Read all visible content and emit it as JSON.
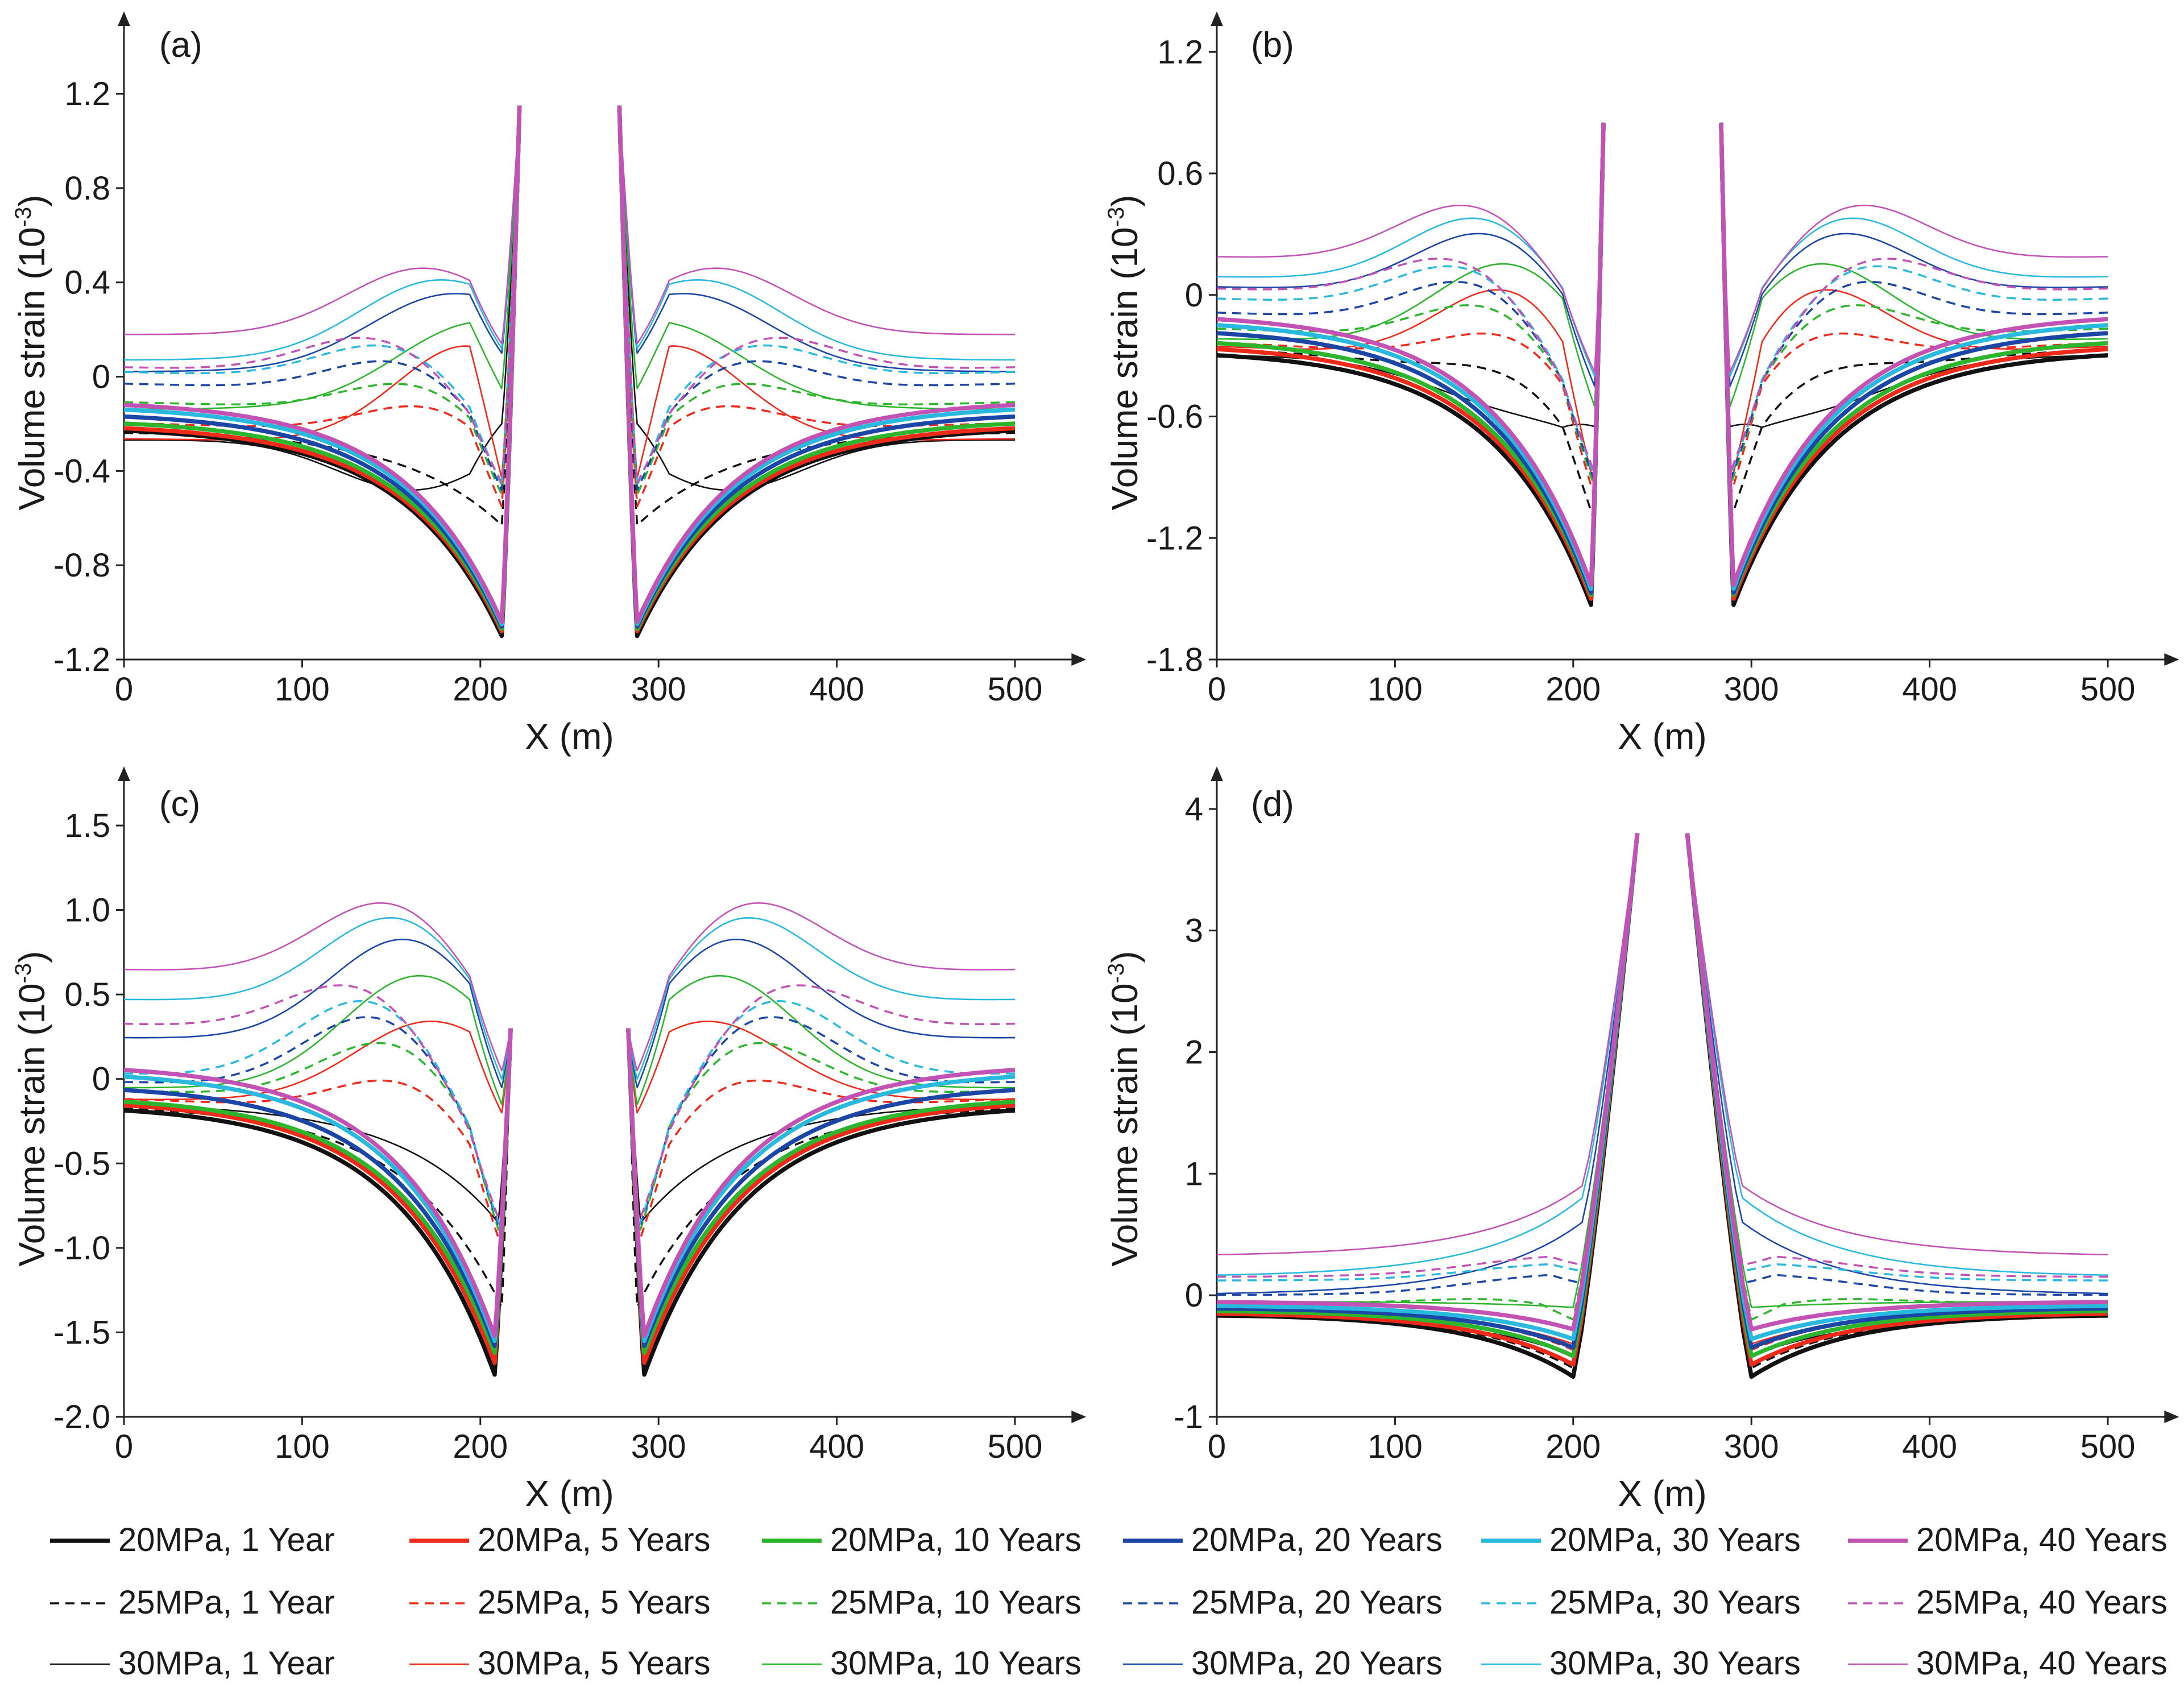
{
  "figure": {
    "x_label": "X (m)",
    "y_label_main": "Volume strain (10",
    "y_label_exp": "-3",
    "y_label_close": ")"
  },
  "colors": {
    "1": "#111111",
    "5": "#ee2a1a",
    "10": "#2db52d",
    "20": "#1b46a6",
    "30": "#29b9df",
    "40": "#c253b5"
  },
  "legend": [
    {
      "label": "20MPa, 1 Year",
      "pressure": 20,
      "years": 1
    },
    {
      "label": "20MPa, 5 Years",
      "pressure": 20,
      "years": 5
    },
    {
      "label": "20MPa, 10 Years",
      "pressure": 20,
      "years": 10
    },
    {
      "label": "20MPa, 20 Years",
      "pressure": 20,
      "years": 20
    },
    {
      "label": "20MPa, 30 Years",
      "pressure": 20,
      "years": 30
    },
    {
      "label": "20MPa, 40 Years",
      "pressure": 20,
      "years": 40
    },
    {
      "label": "25MPa, 1 Year",
      "pressure": 25,
      "years": 1
    },
    {
      "label": "25MPa, 5 Years",
      "pressure": 25,
      "years": 5
    },
    {
      "label": "25MPa, 10 Years",
      "pressure": 25,
      "years": 10
    },
    {
      "label": "25MPa, 20 Years",
      "pressure": 25,
      "years": 20
    },
    {
      "label": "25MPa, 30 Years",
      "pressure": 25,
      "years": 30
    },
    {
      "label": "25MPa, 40 Years",
      "pressure": 25,
      "years": 40
    },
    {
      "label": "30MPa, 1 Year",
      "pressure": 30,
      "years": 1
    },
    {
      "label": "30MPa, 5 Years",
      "pressure": 30,
      "years": 5
    },
    {
      "label": "30MPa, 10 Years",
      "pressure": 30,
      "years": 10
    },
    {
      "label": "30MPa, 20 Years",
      "pressure": 30,
      "years": 20
    },
    {
      "label": "30MPa, 30 Years",
      "pressure": 30,
      "years": 30
    },
    {
      "label": "30MPa, 40 Years",
      "pressure": 30,
      "years": 40
    }
  ],
  "chart_data": [
    {
      "type": "line",
      "panel": "(a)",
      "xlabel": "X (m)",
      "ylabel": "Volume strain (10^-3)",
      "xlim": [
        0,
        540
      ],
      "ylim": [
        -1.2,
        1.55
      ],
      "xticks": [
        0,
        100,
        200,
        300,
        400,
        500
      ],
      "yticks": [
        -1.2,
        -0.8,
        -0.4,
        0,
        0.4,
        0.8,
        1.2
      ],
      "ytick_labels": [
        "-1.2",
        "-0.8",
        "-0.4",
        "0",
        "0.4",
        "0.8",
        "1.2"
      ],
      "opening": [
        222,
        278
      ],
      "edge_value": 1.15,
      "series": [
        {
          "name": "20MPa, 1 Year",
          "far": -0.21,
          "xmin": 212,
          "ymin": -1.1
        },
        {
          "name": "20MPa, 5 Years",
          "far": -0.2,
          "xmin": 212,
          "ymin": -1.08
        },
        {
          "name": "20MPa, 10 Years",
          "far": -0.18,
          "xmin": 212,
          "ymin": -1.07
        },
        {
          "name": "20MPa, 20 Years",
          "far": -0.15,
          "xmin": 212,
          "ymin": -1.06
        },
        {
          "name": "20MPa, 30 Years",
          "far": -0.12,
          "xmin": 212,
          "ymin": -1.05
        },
        {
          "name": "20MPa, 40 Years",
          "far": -0.1,
          "xmin": 212,
          "ymin": -1.04
        },
        {
          "name": "25MPa, 1 Year",
          "far": -0.23,
          "xmin": 212,
          "ymin": -0.63,
          "peak_x": 190,
          "peak": -0.5
        },
        {
          "name": "25MPa, 5 Years",
          "far": -0.19,
          "xmin": 212,
          "ymin": -0.55,
          "peak_x": 185,
          "peak": -0.17
        },
        {
          "name": "25MPa, 10 Years",
          "far": -0.1,
          "xmin": 212,
          "ymin": -0.5,
          "peak_x": 175,
          "peak": -0.07
        },
        {
          "name": "25MPa, 20 Years",
          "far": -0.02,
          "xmin": 212,
          "ymin": -0.48,
          "peak_x": 165,
          "peak": 0.03
        },
        {
          "name": "25MPa, 30 Years",
          "far": 0.03,
          "xmin": 212,
          "ymin": -0.46,
          "peak_x": 160,
          "peak": 0.1
        },
        {
          "name": "25MPa, 40 Years",
          "far": 0.05,
          "xmin": 212,
          "ymin": -0.45,
          "peak_x": 150,
          "peak": 0.14
        },
        {
          "name": "30MPa, 1 Year",
          "far": -0.27,
          "xmin": 212,
          "ymin": -0.2,
          "peak_x": 165,
          "peak": -0.48
        },
        {
          "name": "30MPa, 5 Years",
          "far": -0.26,
          "xmin": 212,
          "ymin": -0.43,
          "peak_x": 200,
          "peak": 0.12
        },
        {
          "name": "30MPa, 10 Years",
          "far": -0.14,
          "xmin": 212,
          "ymin": -0.05,
          "peak_x": 195,
          "peak": 0.23
        },
        {
          "name": "30MPa, 20 Years",
          "far": 0.02,
          "xmin": 212,
          "ymin": 0.1,
          "peak_x": 180,
          "peak": 0.35
        },
        {
          "name": "30MPa, 30 Years",
          "far": 0.07,
          "xmin": 212,
          "ymin": 0.12,
          "peak_x": 175,
          "peak": 0.41
        },
        {
          "name": "30MPa, 40 Years",
          "far": 0.18,
          "xmin": 212,
          "ymin": 0.14,
          "peak_x": 170,
          "peak": 0.46
        }
      ]
    },
    {
      "type": "line",
      "panel": "(b)",
      "xlabel": "X (m)",
      "ylabel": "Volume strain (10^-3)",
      "xlim": [
        0,
        540
      ],
      "ylim": [
        -1.8,
        1.4
      ],
      "xticks": [
        0,
        100,
        200,
        300,
        400,
        500
      ],
      "yticks": [
        -1.8,
        -1.2,
        -0.6,
        0,
        0.6,
        1.2
      ],
      "ytick_labels": [
        "-1.8",
        "-1.2",
        "-0.6",
        "0",
        "0.6",
        "1.2"
      ],
      "opening": [
        217,
        283
      ],
      "edge_value": 0.85,
      "series": [
        {
          "name": "20MPa, 1 Year",
          "far": -0.27,
          "xmin": 210,
          "ymin": -1.53
        },
        {
          "name": "20MPa, 5 Years",
          "far": -0.24,
          "xmin": 210,
          "ymin": -1.5
        },
        {
          "name": "20MPa, 10 Years",
          "far": -0.21,
          "xmin": 210,
          "ymin": -1.48
        },
        {
          "name": "20MPa, 20 Years",
          "far": -0.16,
          "xmin": 210,
          "ymin": -1.47
        },
        {
          "name": "20MPa, 30 Years",
          "far": -0.12,
          "xmin": 210,
          "ymin": -1.45
        },
        {
          "name": "20MPa, 40 Years",
          "far": -0.09,
          "xmin": 210,
          "ymin": -1.43
        },
        {
          "name": "25MPa, 1 Year",
          "far": -0.25,
          "xmin": 212,
          "ymin": -1.12,
          "peak_x": 185,
          "peak": -0.55
        },
        {
          "name": "25MPa, 5 Years",
          "far": -0.22,
          "xmin": 212,
          "ymin": -1.0,
          "peak_x": 180,
          "peak": -0.3
        },
        {
          "name": "25MPa, 10 Years",
          "far": -0.15,
          "xmin": 212,
          "ymin": -0.95,
          "peak_x": 165,
          "peak": -0.12
        },
        {
          "name": "25MPa, 20 Years",
          "far": -0.07,
          "xmin": 212,
          "ymin": -0.92,
          "peak_x": 155,
          "peak": 0.01
        },
        {
          "name": "25MPa, 30 Years",
          "far": 0.0,
          "xmin": 212,
          "ymin": -0.9,
          "peak_x": 150,
          "peak": 0.09
        },
        {
          "name": "25MPa, 40 Years",
          "far": 0.05,
          "xmin": 212,
          "ymin": -0.88,
          "peak_x": 145,
          "peak": 0.13
        },
        {
          "name": "30MPa, 1 Year",
          "far": -0.29,
          "xmin": 212,
          "ymin": -0.65,
          "peak_x": 160,
          "peak": -0.57
        },
        {
          "name": "30MPa, 5 Years",
          "far": -0.24,
          "xmin": 212,
          "ymin": -0.95,
          "peak_x": 175,
          "peak": -0.03
        },
        {
          "name": "30MPa, 10 Years",
          "far": -0.21,
          "xmin": 212,
          "ymin": -0.55,
          "peak_x": 170,
          "peak": 0.14
        },
        {
          "name": "30MPa, 20 Years",
          "far": 0.05,
          "xmin": 212,
          "ymin": -0.45,
          "peak_x": 160,
          "peak": 0.28
        },
        {
          "name": "30MPa, 30 Years",
          "far": 0.1,
          "xmin": 212,
          "ymin": -0.4,
          "peak_x": 155,
          "peak": 0.36
        },
        {
          "name": "30MPa, 40 Years",
          "far": 0.2,
          "xmin": 212,
          "ymin": -0.38,
          "peak_x": 150,
          "peak": 0.42
        }
      ]
    },
    {
      "type": "line",
      "panel": "(c)",
      "xlabel": "X (m)",
      "ylabel": "Volume strain (10^-3)",
      "xlim": [
        0,
        540
      ],
      "ylim": [
        -2.0,
        1.85
      ],
      "xticks": [
        0,
        100,
        200,
        300,
        400,
        500
      ],
      "yticks": [
        -2.0,
        -1.5,
        -1.0,
        -0.5,
        0,
        0.5,
        1.0,
        1.5
      ],
      "ytick_labels": [
        "-2.0",
        "-1.5",
        "-1.0",
        "-0.5",
        "0",
        "0.5",
        "1.0",
        "1.5"
      ],
      "opening": [
        217,
        283
      ],
      "edge_value": 0.3,
      "series": [
        {
          "name": "20MPa, 1 Year",
          "far": -0.15,
          "xmin": 208,
          "ymin": -1.75
        },
        {
          "name": "20MPa, 5 Years",
          "far": -0.12,
          "xmin": 208,
          "ymin": -1.68
        },
        {
          "name": "20MPa, 10 Years",
          "far": -0.1,
          "xmin": 208,
          "ymin": -1.62
        },
        {
          "name": "20MPa, 20 Years",
          "far": -0.03,
          "xmin": 208,
          "ymin": -1.58
        },
        {
          "name": "20MPa, 30 Years",
          "far": 0.05,
          "xmin": 208,
          "ymin": -1.55
        },
        {
          "name": "20MPa, 40 Years",
          "far": 0.09,
          "xmin": 208,
          "ymin": -1.52
        },
        {
          "name": "25MPa, 1 Year",
          "far": -0.15,
          "xmin": 212,
          "ymin": -1.35
        },
        {
          "name": "25MPa, 5 Years",
          "far": -0.1,
          "xmin": 212,
          "ymin": -1.0,
          "peak_x": 170,
          "peak": -0.1
        },
        {
          "name": "25MPa, 10 Years",
          "far": -0.05,
          "xmin": 212,
          "ymin": -0.95,
          "peak_x": 160,
          "peak": 0.16
        },
        {
          "name": "25MPa, 20 Years",
          "far": 0.0,
          "xmin": 212,
          "ymin": -0.92,
          "peak_x": 150,
          "peak": 0.33
        },
        {
          "name": "25MPa, 30 Years",
          "far": 0.05,
          "xmin": 212,
          "ymin": -0.9,
          "peak_x": 145,
          "peak": 0.43
        },
        {
          "name": "25MPa, 40 Years",
          "far": 0.35,
          "xmin": 212,
          "ymin": -0.88,
          "peak_x": 140,
          "peak": 0.5
        },
        {
          "name": "30MPa, 1 Year",
          "far": -0.14,
          "xmin": 210,
          "ymin": -0.85
        },
        {
          "name": "30MPa, 5 Years",
          "far": -0.12,
          "xmin": 212,
          "ymin": -0.2,
          "peak_x": 175,
          "peak": 0.34
        },
        {
          "name": "30MPa, 10 Years",
          "far": -0.05,
          "xmin": 212,
          "ymin": -0.15,
          "peak_x": 168,
          "peak": 0.61
        },
        {
          "name": "30MPa, 20 Years",
          "far": 0.25,
          "xmin": 212,
          "ymin": -0.05,
          "peak_x": 162,
          "peak": 0.82
        },
        {
          "name": "30MPa, 30 Years",
          "far": 0.48,
          "xmin": 212,
          "ymin": 0.0,
          "peak_x": 158,
          "peak": 0.94
        },
        {
          "name": "30MPa, 40 Years",
          "far": 0.66,
          "xmin": 212,
          "ymin": 0.05,
          "peak_x": 155,
          "peak": 1.02
        }
      ]
    },
    {
      "type": "line",
      "panel": "(d)",
      "xlabel": "X (m)",
      "ylabel": "Volume strain (10^-3)",
      "xlim": [
        0,
        540
      ],
      "ylim": [
        -1.0,
        4.35
      ],
      "xticks": [
        0,
        100,
        200,
        300,
        400,
        500
      ],
      "yticks": [
        -1,
        0,
        1,
        2,
        3,
        4
      ],
      "ytick_labels": [
        "-1",
        "0",
        "1",
        "2",
        "3",
        "4"
      ],
      "opening": [
        236,
        264
      ],
      "edge_value": 3.8,
      "series": [
        {
          "name": "20MPa, 1 Year",
          "far": -0.15,
          "xmin": 200,
          "ymin": -0.67
        },
        {
          "name": "20MPa, 5 Years",
          "far": -0.14,
          "xmin": 200,
          "ymin": -0.57
        },
        {
          "name": "20MPa, 10 Years",
          "far": -0.12,
          "xmin": 200,
          "ymin": -0.5
        },
        {
          "name": "20MPa, 20 Years",
          "far": -0.1,
          "xmin": 200,
          "ymin": -0.43
        },
        {
          "name": "20MPa, 30 Years",
          "far": -0.08,
          "xmin": 200,
          "ymin": -0.36
        },
        {
          "name": "20MPa, 40 Years",
          "far": -0.05,
          "xmin": 200,
          "ymin": -0.28
        },
        {
          "name": "25MPa, 1 Year",
          "far": -0.15,
          "xmin": 200,
          "ymin": -0.6
        },
        {
          "name": "25MPa, 5 Years",
          "far": -0.1,
          "xmin": 200,
          "ymin": -0.45
        },
        {
          "name": "25MPa, 10 Years",
          "far": -0.05,
          "xmin": 200,
          "ymin": -0.2,
          "peak_x": 170,
          "peak": -0.05
        },
        {
          "name": "25MPa, 20 Years",
          "far": 0.0,
          "xmin": 205,
          "ymin": 0.1,
          "peak_x": 180,
          "peak": 0.16
        },
        {
          "name": "25MPa, 30 Years",
          "far": 0.12,
          "xmin": 205,
          "ymin": 0.2,
          "peak_x": 180,
          "peak": 0.25
        },
        {
          "name": "25MPa, 40 Years",
          "far": 0.15,
          "xmin": 205,
          "ymin": 0.25,
          "peak_x": 180,
          "peak": 0.31
        },
        {
          "name": "30MPa, 1 Year",
          "far": -0.17,
          "xmin": 200,
          "ymin": -0.5
        },
        {
          "name": "30MPa, 5 Years",
          "far": -0.12,
          "xmin": 200,
          "ymin": -0.4
        },
        {
          "name": "30MPa, 10 Years",
          "far": -0.05,
          "xmin": 200,
          "ymin": -0.1
        },
        {
          "name": "30MPa, 20 Years",
          "far": 0.0,
          "xmin": 205,
          "ymin": 0.6
        },
        {
          "name": "30MPa, 30 Years",
          "far": 0.15,
          "xmin": 205,
          "ymin": 0.8
        },
        {
          "name": "30MPa, 40 Years",
          "far": 0.32,
          "xmin": 205,
          "ymin": 0.9
        }
      ]
    }
  ]
}
